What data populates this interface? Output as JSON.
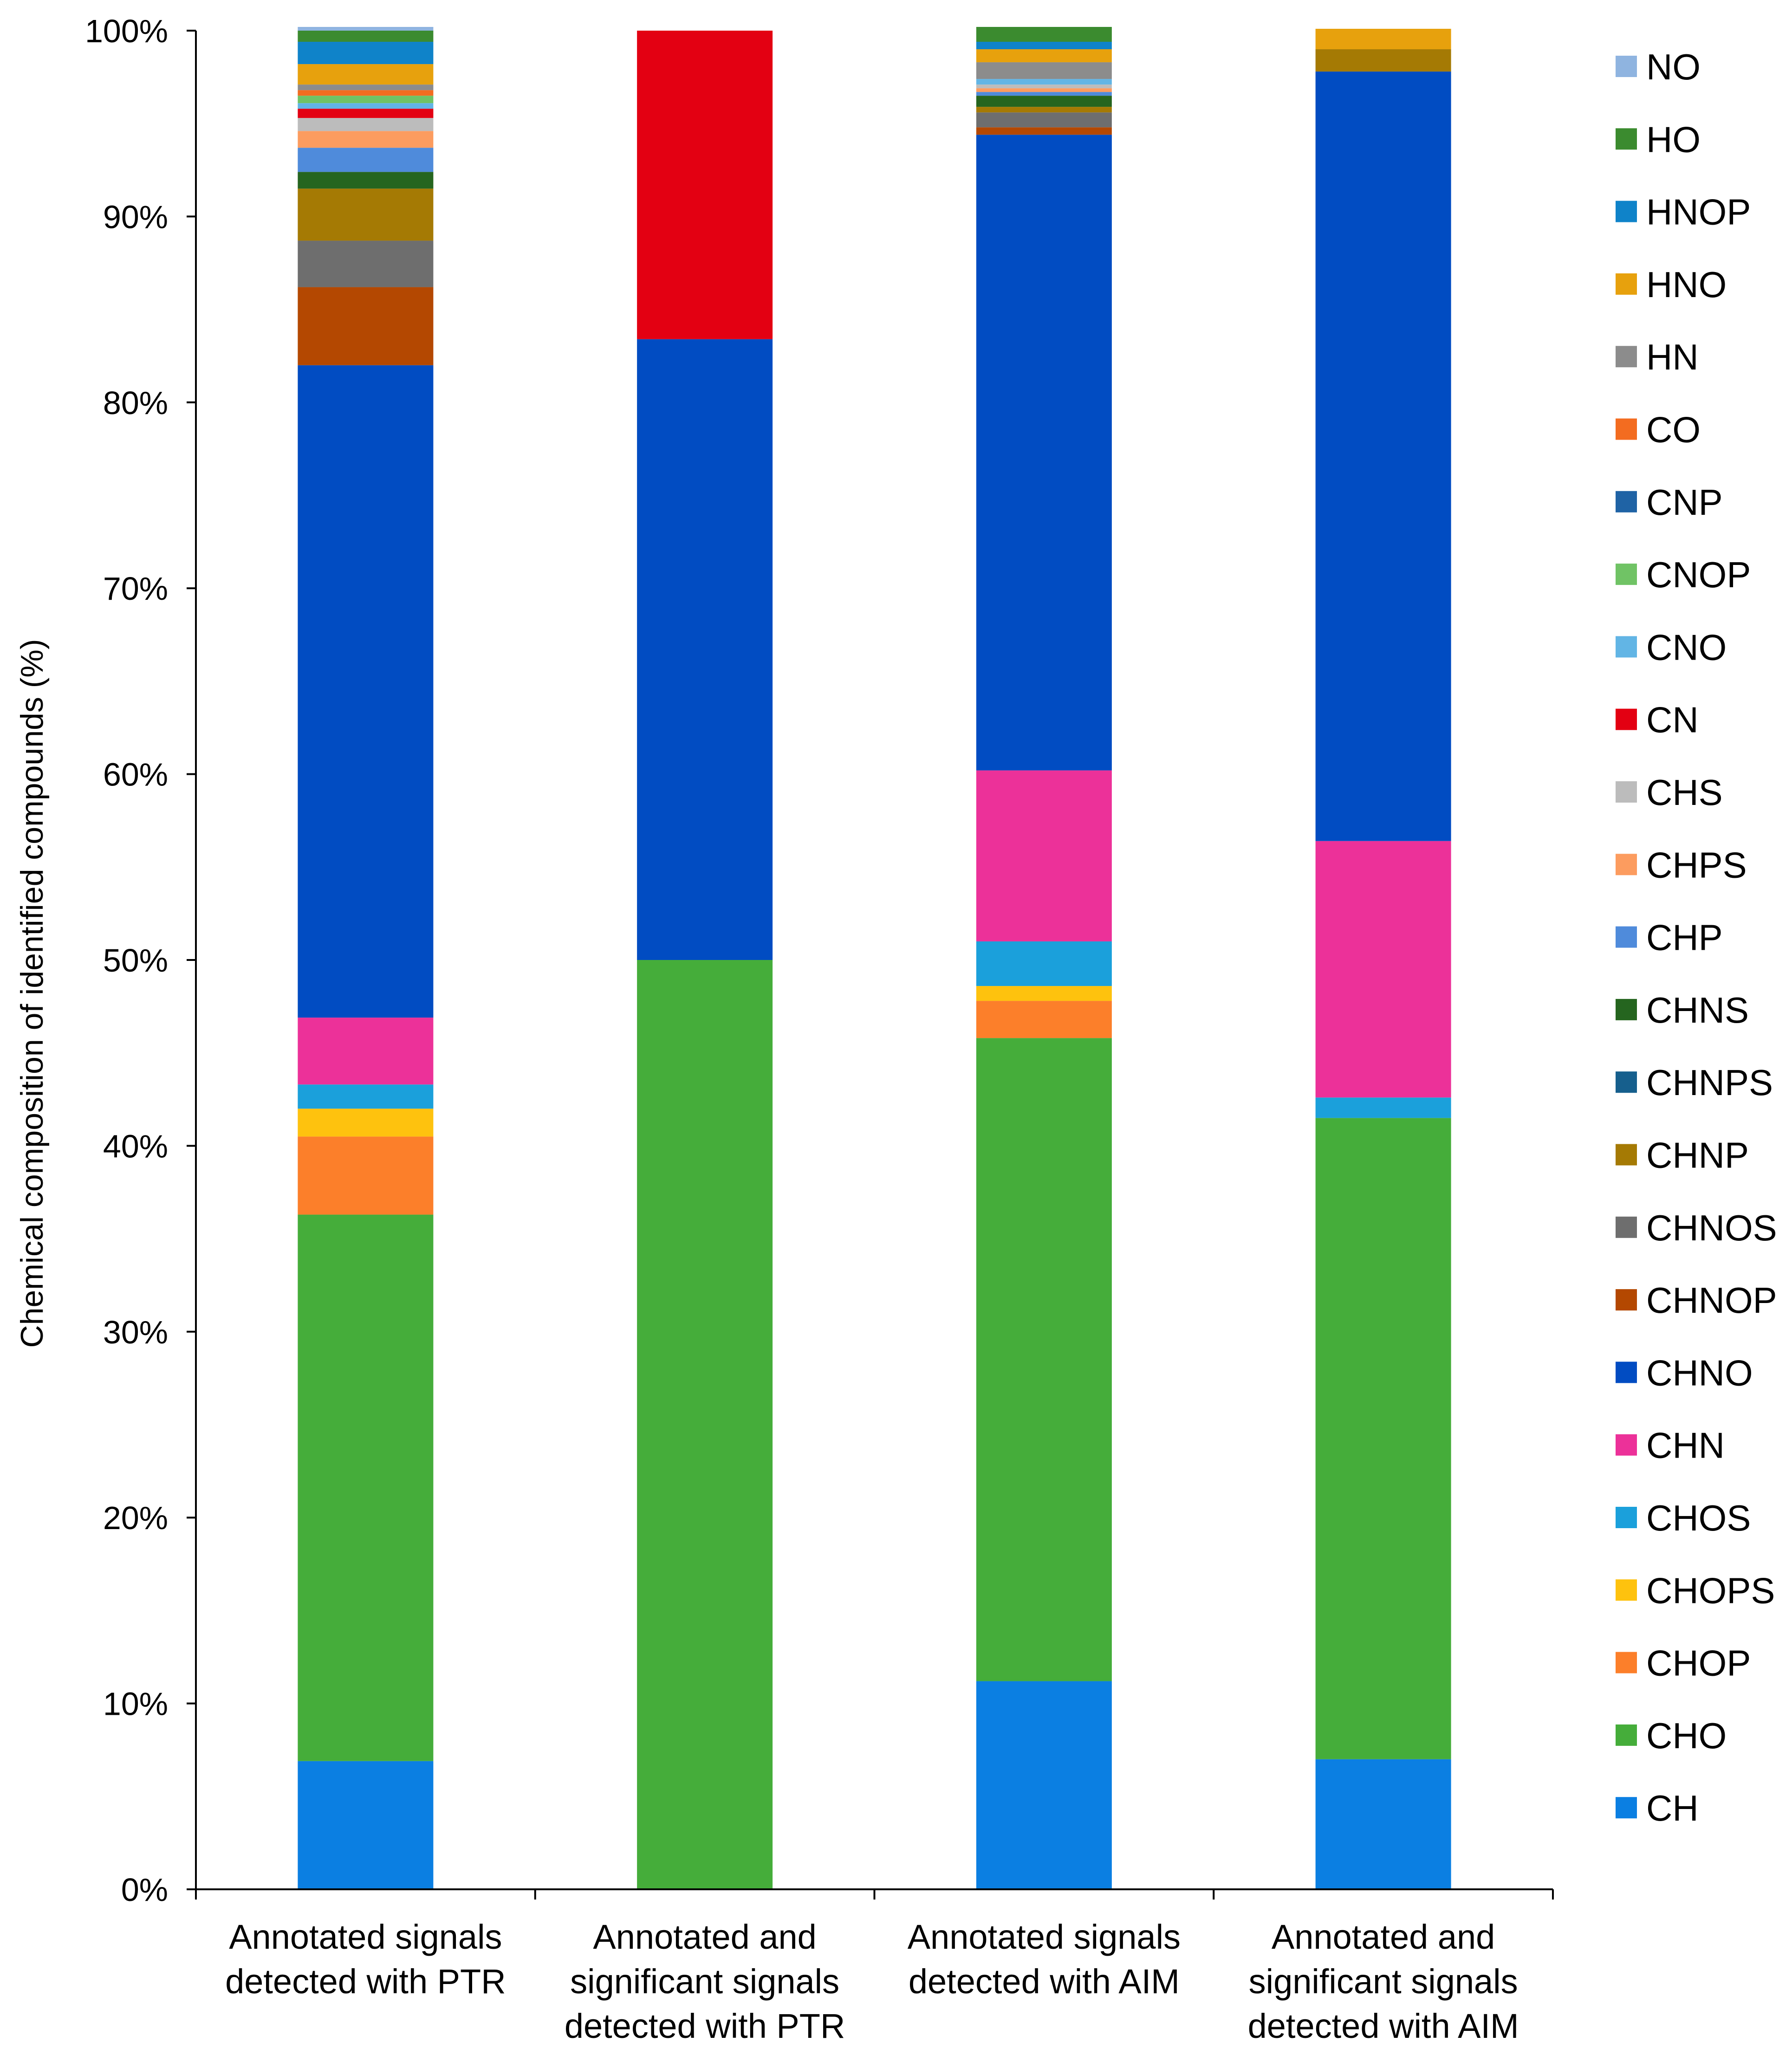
{
  "chart_data": {
    "type": "stacked-bar-100",
    "ylabel": "Chemical composition of identified compounds (%)",
    "xlabel": "",
    "ylim": [
      0,
      100
    ],
    "yticks": [
      "0%",
      "10%",
      "20%",
      "30%",
      "40%",
      "50%",
      "60%",
      "70%",
      "80%",
      "90%",
      "100%"
    ],
    "legend_position": "right",
    "categories": [
      [
        "Annotated signals",
        "detected with PTR"
      ],
      [
        "Annotated and",
        "significant signals",
        "detected with PTR"
      ],
      [
        "Annotated signals",
        "detected with AIM"
      ],
      [
        "Annotated and",
        "significant signals",
        "detected with AIM"
      ]
    ],
    "series": [
      {
        "name": "CH",
        "color": "#0b7fe2",
        "values": [
          6.9,
          0,
          11.2,
          7.0
        ]
      },
      {
        "name": "CHO",
        "color": "#45ad3a",
        "values": [
          29.4,
          50.0,
          34.6,
          34.5
        ]
      },
      {
        "name": "CHOP",
        "color": "#fc7f2a",
        "values": [
          4.2,
          0,
          2.0,
          0
        ]
      },
      {
        "name": "CHOPS",
        "color": "#fec20e",
        "values": [
          1.5,
          0,
          0.8,
          0
        ]
      },
      {
        "name": "CHOS",
        "color": "#1ba0db",
        "values": [
          1.3,
          0,
          2.4,
          1.1
        ]
      },
      {
        "name": "CHN",
        "color": "#ec3199",
        "values": [
          3.6,
          0,
          9.2,
          13.8
        ]
      },
      {
        "name": "CHNO",
        "color": "#014cc2",
        "values": [
          35.1,
          33.4,
          34.2,
          41.4
        ]
      },
      {
        "name": "CHNOP",
        "color": "#b44801",
        "values": [
          4.2,
          0,
          0.4,
          0
        ]
      },
      {
        "name": "CHNOS",
        "color": "#6e6e6e",
        "values": [
          2.5,
          0,
          0.8,
          0
        ]
      },
      {
        "name": "CHNP",
        "color": "#a57a04",
        "values": [
          2.8,
          0,
          0.3,
          1.2
        ]
      },
      {
        "name": "CHNPS",
        "color": "#165f8d",
        "values": [
          0,
          0,
          0,
          0
        ]
      },
      {
        "name": "CHNS",
        "color": "#25651f",
        "values": [
          0.9,
          0,
          0.6,
          0
        ]
      },
      {
        "name": "CHP",
        "color": "#4f8bdb",
        "values": [
          1.3,
          0,
          0.2,
          0
        ]
      },
      {
        "name": "CHPS",
        "color": "#fc9c5f",
        "values": [
          0.9,
          0,
          0.2,
          0
        ]
      },
      {
        "name": "CHS",
        "color": "#bcbcbc",
        "values": [
          0.7,
          0,
          0.2,
          0
        ]
      },
      {
        "name": "CN",
        "color": "#e30012",
        "values": [
          0.5,
          16.6,
          0,
          0
        ]
      },
      {
        "name": "CNO",
        "color": "#62b5e5",
        "values": [
          0.3,
          0,
          0.3,
          0
        ]
      },
      {
        "name": "CNOP",
        "color": "#70c365",
        "values": [
          0.4,
          0,
          0,
          0
        ]
      },
      {
        "name": "CNP",
        "color": "#1f63a5",
        "values": [
          0,
          0,
          0,
          0
        ]
      },
      {
        "name": "CO",
        "color": "#f36c20",
        "values": [
          0.3,
          0,
          0,
          0
        ]
      },
      {
        "name": "HN",
        "color": "#8c8c8c",
        "values": [
          0.3,
          0,
          0.9,
          0
        ]
      },
      {
        "name": "HNO",
        "color": "#e7a10d",
        "values": [
          1.1,
          0,
          0.7,
          1.1
        ]
      },
      {
        "name": "HNOP",
        "color": "#0f83c9",
        "values": [
          1.2,
          0,
          0.4,
          0
        ]
      },
      {
        "name": "HO",
        "color": "#3b8b2f",
        "values": [
          0.6,
          0,
          0.8,
          0
        ]
      },
      {
        "name": "NO",
        "color": "#8fb4e0",
        "values": [
          0.2,
          0,
          0,
          0
        ]
      }
    ]
  }
}
